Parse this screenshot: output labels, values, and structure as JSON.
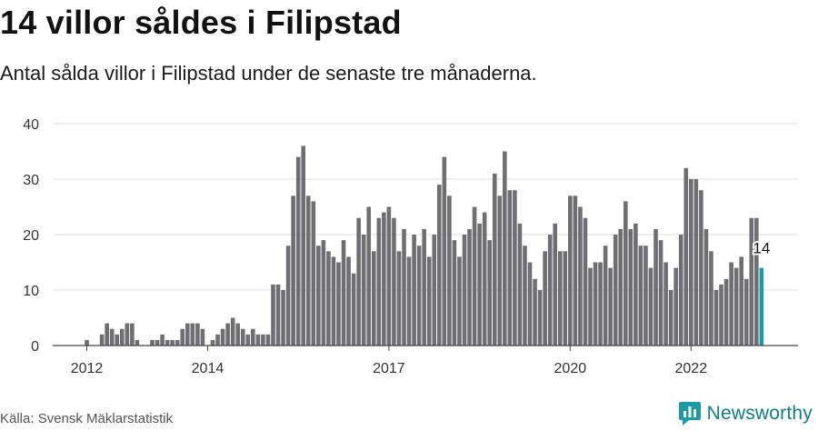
{
  "title": "14 villor såldes i Filipstad",
  "subtitle": "Antal sålda villor i Filipstad under de senaste tre månaderna.",
  "source": "Källa: Svensk Mäklarstatistik",
  "brand": {
    "name": "Newsworthy",
    "icon": "newsworthy-logo-icon"
  },
  "colors": {
    "bar": "#6e6e73",
    "highlight": "#1a9ba3",
    "grid": "#dddddd",
    "axis": "#444444",
    "brand": "#0f7c86"
  },
  "chart_data": {
    "type": "bar",
    "title": "14 villor såldes i Filipstad",
    "xlabel": "",
    "ylabel": "",
    "ylim": [
      0,
      40
    ],
    "yticks": [
      0,
      10,
      20,
      30,
      40
    ],
    "x_start": "2012-01",
    "xticks": [
      {
        "label": "2012",
        "month_index": 0
      },
      {
        "label": "2014",
        "month_index": 24
      },
      {
        "label": "2017",
        "month_index": 60
      },
      {
        "label": "2020",
        "month_index": 96
      },
      {
        "label": "2022",
        "month_index": 120
      }
    ],
    "values": [
      1,
      0,
      0,
      2,
      4,
      3,
      2,
      3,
      4,
      4,
      1,
      0,
      0,
      1,
      1,
      2,
      1,
      1,
      1,
      3,
      4,
      4,
      4,
      3,
      0,
      1,
      2,
      3,
      4,
      5,
      4,
      3,
      2,
      3,
      2,
      2,
      2,
      11,
      11,
      10,
      18,
      27,
      34,
      36,
      27,
      26,
      18,
      19,
      17,
      16,
      15,
      19,
      16,
      13,
      23,
      20,
      25,
      17,
      23,
      24,
      25,
      23,
      17,
      21,
      16,
      20,
      18,
      21,
      16,
      20,
      29,
      34,
      27,
      19,
      16,
      20,
      21,
      25,
      22,
      24,
      19,
      31,
      27,
      35,
      28,
      28,
      22,
      18,
      15,
      12,
      10,
      17,
      20,
      22,
      17,
      17,
      27,
      27,
      25,
      23,
      14,
      15,
      15,
      18,
      14,
      20,
      21,
      26,
      21,
      22,
      18,
      18,
      14,
      21,
      19,
      15,
      10,
      14,
      20,
      32,
      30,
      30,
      28,
      21,
      17,
      10,
      11,
      12,
      15,
      14,
      16,
      12,
      23,
      23,
      14
    ],
    "highlight_last": true,
    "annotation": {
      "label": "14",
      "target": "last"
    }
  }
}
